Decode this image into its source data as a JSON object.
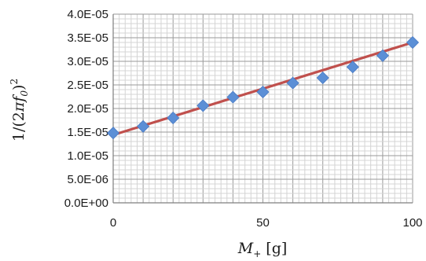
{
  "chart_data": {
    "type": "scatter",
    "title": "",
    "xlabel": "M+ [g]",
    "ylabel": "1/(2πf0)^2",
    "xlim": [
      0,
      100
    ],
    "ylim": [
      0,
      4e-05
    ],
    "x_ticks": [
      0,
      50,
      100
    ],
    "x_tick_labels": [
      "0",
      "50",
      "100"
    ],
    "y_ticks": [
      0,
      5e-06,
      1e-05,
      1.5e-05,
      2e-05,
      2.5e-05,
      3e-05,
      3.5e-05,
      4e-05
    ],
    "y_tick_labels": [
      "0.0E+00",
      "5.0E-06",
      "1.0E-05",
      "1.5E-05",
      "2.0E-05",
      "2.5E-05",
      "3.0E-05",
      "3.5E-05",
      "4.0E-05"
    ],
    "grid": true,
    "series": [
      {
        "marker": "diamond",
        "color": "#5b8fd6",
        "x": [
          0,
          10,
          20,
          30,
          40,
          50,
          60,
          70,
          80,
          90,
          100
        ],
        "y": [
          1.48e-05,
          1.62e-05,
          1.8e-05,
          2.06e-05,
          2.24e-05,
          2.35e-05,
          2.54e-05,
          2.65e-05,
          2.88e-05,
          3.12e-05,
          3.4e-05
        ]
      }
    ],
    "trendline": {
      "type": "linear",
      "color": "#c0504d",
      "x": [
        0,
        100
      ],
      "y": [
        1.44e-05,
        3.4e-05
      ]
    }
  }
}
